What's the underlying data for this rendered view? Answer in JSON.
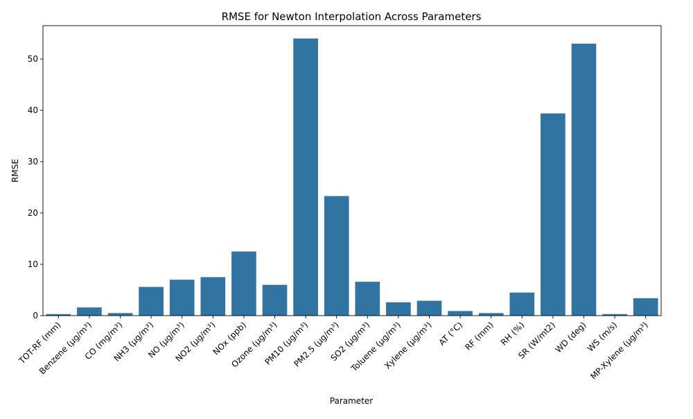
{
  "chart_data": {
    "type": "bar",
    "title": "RMSE for Newton Interpolation Across Parameters",
    "xlabel": "Parameter",
    "ylabel": "RMSE",
    "ylim": [
      0,
      56.5
    ],
    "yticks": [
      0,
      10,
      20,
      30,
      40,
      50
    ],
    "grid": false,
    "legend": "none",
    "bar_color": "#3274a1",
    "categories": [
      "TOT-RF (mm)",
      "Benzene (µg/m³)",
      "CO (mg/m³)",
      "NH3 (µg/m³)",
      "NO (µg/m³)",
      "NO2 (µg/m³)",
      "NOx (ppb)",
      "Ozone (µg/m³)",
      "PM10 (µg/m³)",
      "PM2.5 (µg/m³)",
      "SO2 (µg/m³)",
      "Toluene (µg/m³)",
      "Xylene (µg/m³)",
      "AT (°C)",
      "RF (mm)",
      "RH (%)",
      "SR (W/mt2)",
      "WD (deg)",
      "WS (m/s)",
      "MP-Xylene (µg/m³)"
    ],
    "values": [
      0.3,
      1.6,
      0.5,
      5.6,
      7.0,
      7.5,
      12.5,
      6.0,
      54.0,
      23.3,
      6.6,
      2.6,
      2.9,
      0.9,
      0.5,
      4.5,
      39.4,
      53.0,
      0.3,
      3.4
    ]
  }
}
